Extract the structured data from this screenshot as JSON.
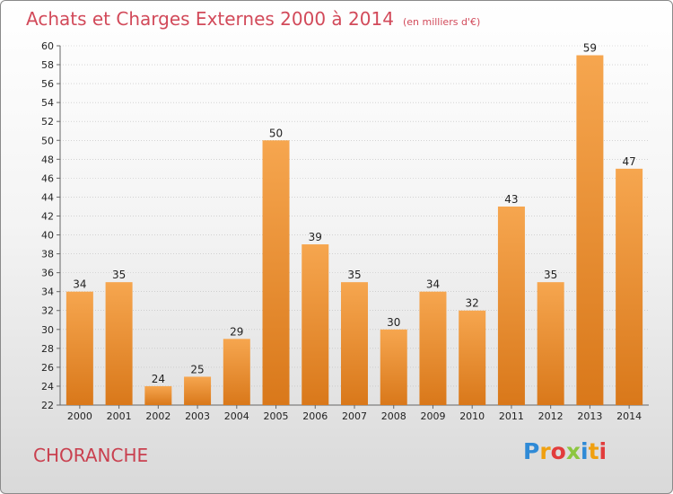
{
  "title": "Achats et Charges Externes 2000 à 2014",
  "unit_note": "(en milliers d'€)",
  "town": "CHORANCHE",
  "logo": {
    "text": "Proxiti",
    "letters": [
      {
        "ch": "P",
        "color": "#2f8ad6"
      },
      {
        "ch": "r",
        "color": "#f0a010"
      },
      {
        "ch": "o",
        "color": "#e23c3c"
      },
      {
        "ch": "x",
        "color": "#8cc63f"
      },
      {
        "ch": "i",
        "color": "#2f8ad6"
      },
      {
        "ch": "t",
        "color": "#f0a010"
      },
      {
        "ch": "i",
        "color": "#e23c3c"
      }
    ]
  },
  "colors": {
    "bar_top": "#f6a64f",
    "bar_bottom": "#d9781a",
    "title": "#d24a5a",
    "grid": "#bdbdbd"
  },
  "chart_data": {
    "type": "bar",
    "title": "Achats et Charges Externes 2000 à 2014",
    "subtitle": "(en milliers d'€)",
    "categories": [
      "2000",
      "2001",
      "2002",
      "2003",
      "2004",
      "2005",
      "2006",
      "2007",
      "2008",
      "2009",
      "2010",
      "2011",
      "2012",
      "2013",
      "2014"
    ],
    "values": [
      34,
      35,
      24,
      25,
      29,
      50,
      39,
      35,
      30,
      34,
      32,
      43,
      35,
      59,
      47
    ],
    "xlabel": "",
    "ylabel": "",
    "ylim": [
      22,
      60
    ],
    "yticks": [
      22,
      24,
      26,
      28,
      30,
      32,
      34,
      36,
      38,
      40,
      42,
      44,
      46,
      48,
      50,
      52,
      54,
      56,
      58,
      60
    ],
    "grid": true,
    "legend": "none"
  }
}
